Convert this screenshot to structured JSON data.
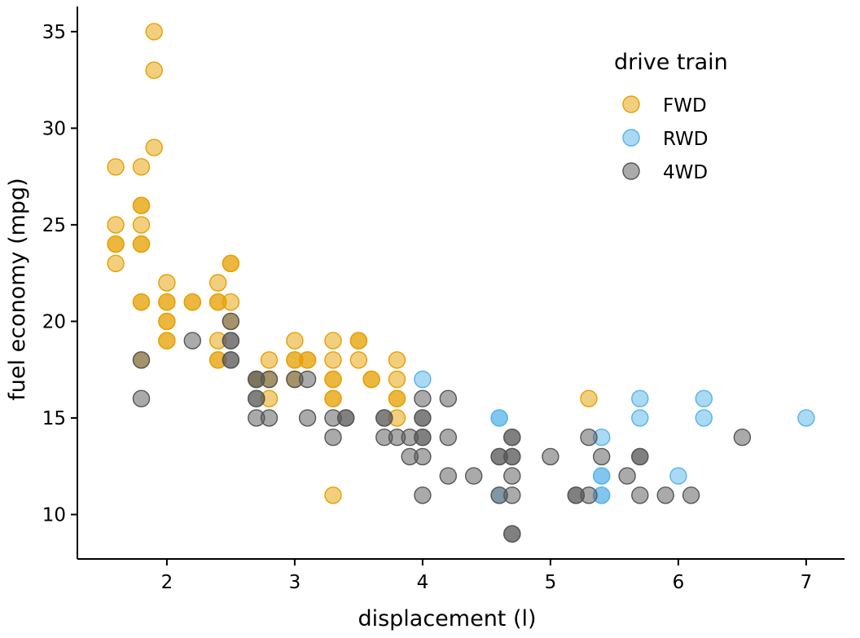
{
  "chart_data": {
    "type": "scatter",
    "xlabel": "displacement (l)",
    "ylabel": "fuel economy (mpg)",
    "xlim": [
      1.3,
      7.3
    ],
    "ylim": [
      7.7,
      36.3
    ],
    "xticks": [
      "2",
      "3",
      "4",
      "5",
      "6",
      "7"
    ],
    "yticks": [
      "10",
      "15",
      "20",
      "25",
      "30",
      "35"
    ],
    "grid": false,
    "legend": {
      "title": "drive train",
      "position": "top-right",
      "entries": [
        "FWD",
        "RWD",
        "4WD"
      ]
    },
    "colors": {
      "FWD": "#E69F00",
      "RWD": "#56B4E9",
      "4WD": "#555555"
    },
    "series": [
      {
        "name": "FWD",
        "points": [
          [
            1.6,
            28
          ],
          [
            1.6,
            25
          ],
          [
            1.6,
            24
          ],
          [
            1.6,
            24
          ],
          [
            1.6,
            23
          ],
          [
            1.8,
            28
          ],
          [
            1.8,
            26
          ],
          [
            1.8,
            26
          ],
          [
            1.8,
            25
          ],
          [
            1.8,
            24
          ],
          [
            1.8,
            24
          ],
          [
            1.8,
            21
          ],
          [
            1.8,
            21
          ],
          [
            1.8,
            18
          ],
          [
            1.9,
            35
          ],
          [
            1.9,
            33
          ],
          [
            1.9,
            29
          ],
          [
            2.0,
            22
          ],
          [
            2.0,
            21
          ],
          [
            2.0,
            21
          ],
          [
            2.0,
            20
          ],
          [
            2.0,
            20
          ],
          [
            2.0,
            19
          ],
          [
            2.0,
            19
          ],
          [
            2.2,
            21
          ],
          [
            2.2,
            21
          ],
          [
            2.4,
            22
          ],
          [
            2.4,
            21
          ],
          [
            2.4,
            21
          ],
          [
            2.4,
            19
          ],
          [
            2.4,
            18
          ],
          [
            2.4,
            18
          ],
          [
            2.5,
            23
          ],
          [
            2.5,
            23
          ],
          [
            2.5,
            21
          ],
          [
            2.5,
            20
          ],
          [
            2.7,
            17
          ],
          [
            2.8,
            18
          ],
          [
            2.8,
            17
          ],
          [
            2.8,
            16
          ],
          [
            3.0,
            19
          ],
          [
            3.0,
            18
          ],
          [
            3.0,
            18
          ],
          [
            3.0,
            17
          ],
          [
            3.1,
            18
          ],
          [
            3.1,
            18
          ],
          [
            3.3,
            19
          ],
          [
            3.3,
            18
          ],
          [
            3.3,
            17
          ],
          [
            3.3,
            17
          ],
          [
            3.3,
            16
          ],
          [
            3.3,
            16
          ],
          [
            3.3,
            11
          ],
          [
            3.5,
            19
          ],
          [
            3.5,
            19
          ],
          [
            3.5,
            18
          ],
          [
            3.6,
            17
          ],
          [
            3.6,
            17
          ],
          [
            3.8,
            18
          ],
          [
            3.8,
            17
          ],
          [
            3.8,
            16
          ],
          [
            3.8,
            16
          ],
          [
            3.8,
            15
          ],
          [
            5.3,
            16
          ]
        ]
      },
      {
        "name": "RWD",
        "points": [
          [
            4.0,
            17
          ],
          [
            4.6,
            15
          ],
          [
            4.6,
            15
          ],
          [
            4.6,
            11
          ],
          [
            5.4,
            14
          ],
          [
            5.4,
            12
          ],
          [
            5.4,
            12
          ],
          [
            5.4,
            11
          ],
          [
            5.4,
            11
          ],
          [
            5.7,
            16
          ],
          [
            5.7,
            15
          ],
          [
            6.0,
            12
          ],
          [
            6.2,
            16
          ],
          [
            6.2,
            15
          ],
          [
            7.0,
            15
          ]
        ]
      },
      {
        "name": "4WD",
        "points": [
          [
            1.8,
            18
          ],
          [
            1.8,
            16
          ],
          [
            2.2,
            19
          ],
          [
            2.5,
            20
          ],
          [
            2.5,
            19
          ],
          [
            2.5,
            19
          ],
          [
            2.5,
            18
          ],
          [
            2.5,
            18
          ],
          [
            2.7,
            17
          ],
          [
            2.7,
            17
          ],
          [
            2.7,
            16
          ],
          [
            2.7,
            16
          ],
          [
            2.7,
            15
          ],
          [
            2.8,
            17
          ],
          [
            2.8,
            15
          ],
          [
            3.0,
            17
          ],
          [
            3.1,
            17
          ],
          [
            3.1,
            15
          ],
          [
            3.3,
            15
          ],
          [
            3.3,
            14
          ],
          [
            3.4,
            15
          ],
          [
            3.4,
            15
          ],
          [
            3.7,
            15
          ],
          [
            3.7,
            15
          ],
          [
            3.7,
            14
          ],
          [
            3.8,
            14
          ],
          [
            3.9,
            14
          ],
          [
            3.9,
            13
          ],
          [
            4.0,
            16
          ],
          [
            4.0,
            15
          ],
          [
            4.0,
            15
          ],
          [
            4.0,
            14
          ],
          [
            4.0,
            14
          ],
          [
            4.0,
            13
          ],
          [
            4.0,
            11
          ],
          [
            4.2,
            16
          ],
          [
            4.2,
            14
          ],
          [
            4.2,
            12
          ],
          [
            4.4,
            12
          ],
          [
            4.6,
            13
          ],
          [
            4.6,
            13
          ],
          [
            4.6,
            11
          ],
          [
            4.7,
            14
          ],
          [
            4.7,
            14
          ],
          [
            4.7,
            13
          ],
          [
            4.7,
            13
          ],
          [
            4.7,
            12
          ],
          [
            4.7,
            11
          ],
          [
            4.7,
            9
          ],
          [
            4.7,
            9
          ],
          [
            5.0,
            13
          ],
          [
            5.2,
            11
          ],
          [
            5.2,
            11
          ],
          [
            5.3,
            14
          ],
          [
            5.3,
            11
          ],
          [
            5.4,
            13
          ],
          [
            5.6,
            12
          ],
          [
            5.7,
            13
          ],
          [
            5.7,
            13
          ],
          [
            5.7,
            11
          ],
          [
            5.9,
            11
          ],
          [
            6.1,
            11
          ],
          [
            6.5,
            14
          ]
        ]
      }
    ]
  }
}
